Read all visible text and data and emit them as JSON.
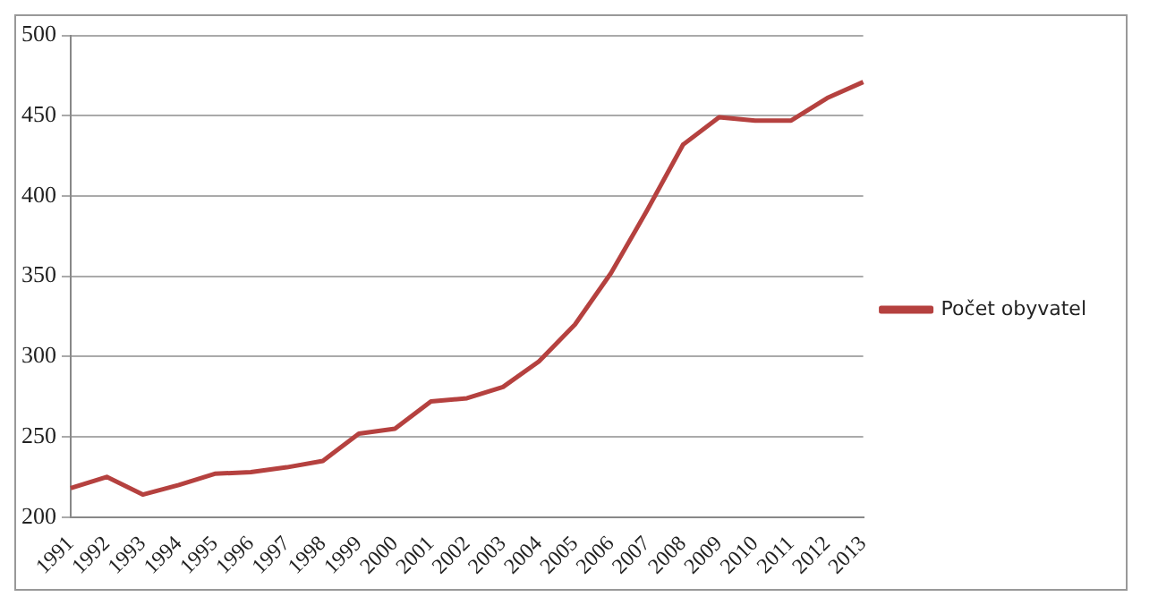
{
  "chart_data": {
    "type": "line",
    "categories": [
      "1991",
      "1992",
      "1993",
      "1994",
      "1995",
      "1996",
      "1997",
      "1998",
      "1999",
      "2000",
      "2001",
      "2002",
      "2003",
      "2004",
      "2005",
      "2006",
      "2007",
      "2008",
      "2009",
      "2010",
      "2011",
      "2012",
      "2013"
    ],
    "series": [
      {
        "name": "Počet obyvatel",
        "color": "#b5413f",
        "values": [
          218,
          225,
          214,
          220,
          227,
          228,
          231,
          235,
          252,
          255,
          272,
          274,
          281,
          297,
          320,
          352,
          391,
          432,
          449,
          447,
          447,
          461,
          471
        ]
      }
    ],
    "ylim": [
      200,
      500
    ],
    "yticks": [
      200,
      250,
      300,
      350,
      400,
      450,
      500
    ],
    "grid": "y",
    "legend": "right",
    "marker": "none",
    "line_style": "solid"
  }
}
